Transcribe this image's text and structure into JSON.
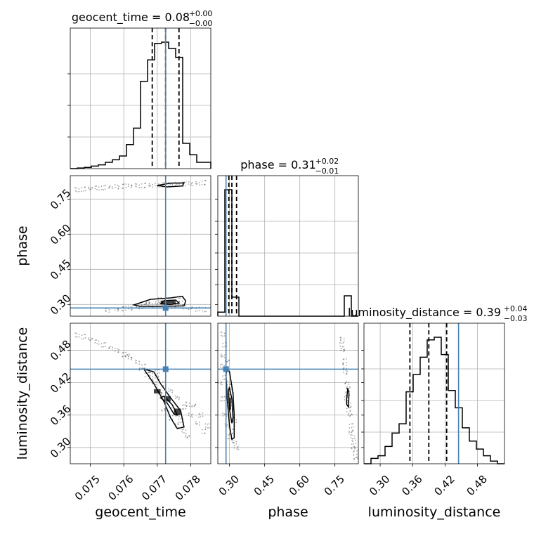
{
  "chart_data": {
    "type": "corner",
    "parameters": [
      {
        "key": "geocent_time",
        "label": "geocent_time",
        "range": [
          0.0744,
          0.0786
        ],
        "ticks": [
          0.075,
          0.076,
          0.077,
          0.078
        ],
        "tick_labels": [
          "0.075",
          "0.076",
          "0.077",
          "0.078"
        ],
        "median": 0.07725,
        "quantiles": [
          0.07685,
          0.07725,
          0.07765
        ],
        "truth": 0.07725,
        "title": {
          "prefix": "geocent_time = 0.08",
          "plus": "+0.00",
          "minus": "−0.00"
        },
        "histogram": {
          "edges": [
            0.0744,
            0.07461,
            0.07482,
            0.07503,
            0.07524,
            0.07545,
            0.07566,
            0.07587,
            0.07608,
            0.07629,
            0.0765,
            0.07671,
            0.07692,
            0.07713,
            0.07734,
            0.07755,
            0.07776,
            0.07797,
            0.07818,
            0.07839,
            0.0786
          ],
          "counts": [
            0.0,
            0.005,
            0.01,
            0.02,
            0.03,
            0.05,
            0.07,
            0.1,
            0.19,
            0.32,
            0.69,
            0.86,
            0.99,
            1.0,
            0.95,
            0.88,
            0.2,
            0.11,
            0.05,
            0.05
          ]
        }
      },
      {
        "key": "phase",
        "label": "phase",
        "range": [
          0.25,
          0.85
        ],
        "ticks": [
          0.3,
          0.45,
          0.6,
          0.75
        ],
        "tick_labels": [
          "0.30",
          "0.45",
          "0.60",
          "0.75"
        ],
        "median": 0.31,
        "quantiles": [
          0.297,
          0.31,
          0.33
        ],
        "truth": 0.285,
        "title": {
          "prefix": "phase = 0.31",
          "plus": "+0.02",
          "minus": "−0.01"
        },
        "histogram": {
          "edges": [
            0.25,
            0.28,
            0.31,
            0.34,
            0.37,
            0.4,
            0.43,
            0.46,
            0.49,
            0.52,
            0.55,
            0.58,
            0.61,
            0.64,
            0.67,
            0.7,
            0.73,
            0.76,
            0.79,
            0.82,
            0.85
          ],
          "counts": [
            0.03,
            0.93,
            0.14,
            0.0,
            0.0,
            0.0,
            0.0,
            0.0,
            0.0,
            0.0,
            0.0,
            0.0,
            0.0,
            0.0,
            0.0,
            0.0,
            0.0,
            0.0,
            0.15,
            0.0
          ]
        }
      },
      {
        "key": "luminosity_distance",
        "label": "luminosity_distance",
        "range": [
          0.27,
          0.53
        ],
        "ticks": [
          0.3,
          0.36,
          0.42,
          0.48
        ],
        "tick_labels": [
          "0.30",
          "0.36",
          "0.42",
          "0.48"
        ],
        "median": 0.39,
        "quantiles": [
          0.355,
          0.39,
          0.423
        ],
        "truth": 0.445,
        "title": {
          "prefix": "luminosity_distance = 0.39",
          "plus": "+0.04",
          "minus": "−0.03"
        },
        "histogram": {
          "edges": [
            0.27,
            0.283,
            0.296,
            0.309,
            0.322,
            0.335,
            0.348,
            0.361,
            0.374,
            0.387,
            0.4,
            0.413,
            0.426,
            0.439,
            0.452,
            0.465,
            0.478,
            0.491,
            0.504,
            0.517,
            0.53
          ],
          "counts": [
            0.0,
            0.04,
            0.06,
            0.13,
            0.23,
            0.3,
            0.54,
            0.67,
            0.8,
            0.93,
            0.95,
            0.82,
            0.55,
            0.42,
            0.27,
            0.17,
            0.11,
            0.06,
            0.02,
            0.0
          ]
        }
      }
    ],
    "pairs": [
      {
        "x": "geocent_time",
        "y": "phase",
        "samples": [
          [
            0.0746,
            0.79
          ],
          [
            0.0748,
            0.792
          ],
          [
            0.075,
            0.795
          ],
          [
            0.0752,
            0.797
          ],
          [
            0.0754,
            0.799
          ],
          [
            0.0756,
            0.801
          ],
          [
            0.0758,
            0.803
          ],
          [
            0.076,
            0.805
          ],
          [
            0.0762,
            0.806
          ],
          [
            0.0764,
            0.807
          ],
          [
            0.0766,
            0.808
          ],
          [
            0.0768,
            0.809
          ],
          [
            0.077,
            0.81
          ],
          [
            0.0772,
            0.811
          ],
          [
            0.0774,
            0.812
          ],
          [
            0.0776,
            0.813
          ],
          [
            0.0778,
            0.814
          ],
          [
            0.078,
            0.816
          ],
          [
            0.0782,
            0.818
          ],
          [
            0.0784,
            0.82
          ],
          [
            0.0755,
            0.275
          ],
          [
            0.0758,
            0.278
          ],
          [
            0.076,
            0.282
          ],
          [
            0.0762,
            0.285
          ],
          [
            0.0764,
            0.288
          ],
          [
            0.0766,
            0.292
          ],
          [
            0.0768,
            0.298
          ],
          [
            0.077,
            0.305
          ],
          [
            0.0772,
            0.31
          ],
          [
            0.0774,
            0.31
          ],
          [
            0.0776,
            0.305
          ],
          [
            0.0777,
            0.32
          ],
          [
            0.0771,
            0.32
          ],
          [
            0.0767,
            0.305
          ],
          [
            0.0775,
            0.295
          ],
          [
            0.0778,
            0.29
          ],
          [
            0.078,
            0.285
          ],
          [
            0.0782,
            0.28
          ],
          [
            0.0784,
            0.278
          ],
          [
            0.0773,
            0.3
          ]
        ],
        "contours": [
          [
            [
              0.0763,
              0.298
            ],
            [
              0.0768,
              0.322
            ],
            [
              0.0774,
              0.328
            ],
            [
              0.07775,
              0.335
            ],
            [
              0.07785,
              0.315
            ],
            [
              0.0778,
              0.294
            ],
            [
              0.077,
              0.292
            ],
            [
              0.0765,
              0.292
            ],
            [
              0.0763,
              0.298
            ]
          ],
          [
            [
              0.0771,
              0.303
            ],
            [
              0.0772,
              0.316
            ],
            [
              0.07755,
              0.319
            ],
            [
              0.07765,
              0.306
            ],
            [
              0.0774,
              0.3
            ],
            [
              0.0771,
              0.303
            ]
          ],
          [
            [
              0.077,
              0.808
            ],
            [
              0.0774,
              0.818
            ],
            [
              0.0778,
              0.819
            ],
            [
              0.07775,
              0.806
            ],
            [
              0.0773,
              0.802
            ],
            [
              0.077,
              0.808
            ]
          ]
        ],
        "dense_blocks": [
          [
            0.0771,
            0.304,
            0.07755,
            0.316
          ]
        ]
      },
      {
        "x": "geocent_time",
        "y": "luminosity_distance",
        "samples": [
          [
            0.0746,
            0.508
          ],
          [
            0.0748,
            0.505
          ],
          [
            0.075,
            0.5
          ],
          [
            0.0752,
            0.495
          ],
          [
            0.0754,
            0.49
          ],
          [
            0.0756,
            0.485
          ],
          [
            0.0758,
            0.48
          ],
          [
            0.076,
            0.472
          ],
          [
            0.0762,
            0.465
          ],
          [
            0.0764,
            0.458
          ],
          [
            0.0766,
            0.45
          ],
          [
            0.0768,
            0.44
          ],
          [
            0.077,
            0.43
          ],
          [
            0.0772,
            0.418
          ],
          [
            0.0774,
            0.405
          ],
          [
            0.0776,
            0.392
          ],
          [
            0.0778,
            0.375
          ],
          [
            0.078,
            0.36
          ],
          [
            0.0782,
            0.345
          ],
          [
            0.0784,
            0.33
          ],
          [
            0.0769,
            0.42
          ],
          [
            0.0771,
            0.4
          ],
          [
            0.0773,
            0.39
          ],
          [
            0.0775,
            0.37
          ],
          [
            0.0776,
            0.36
          ],
          [
            0.0777,
            0.35
          ],
          [
            0.0778,
            0.33
          ],
          [
            0.0779,
            0.32
          ],
          [
            0.077,
            0.44
          ],
          [
            0.0768,
            0.43
          ],
          [
            0.0772,
            0.37
          ],
          [
            0.0774,
            0.355
          ],
          [
            0.0776,
            0.34
          ],
          [
            0.0765,
            0.445
          ],
          [
            0.0767,
            0.435
          ],
          [
            0.0779,
            0.38
          ],
          [
            0.0781,
            0.378
          ],
          [
            0.0783,
            0.36
          ],
          [
            0.0785,
            0.34
          ],
          [
            0.0761,
            0.47
          ]
        ],
        "contours": [
          [
            [
              0.0766,
              0.445
            ],
            [
              0.0769,
              0.418
            ],
            [
              0.0772,
              0.385
            ],
            [
              0.0774,
              0.355
            ],
            [
              0.0776,
              0.335
            ],
            [
              0.0778,
              0.338
            ],
            [
              0.0777,
              0.368
            ],
            [
              0.0774,
              0.392
            ],
            [
              0.0771,
              0.418
            ],
            [
              0.0769,
              0.44
            ],
            [
              0.0766,
              0.445
            ]
          ],
          [
            [
              0.0771,
              0.392
            ],
            [
              0.0773,
              0.382
            ],
            [
              0.0775,
              0.362
            ],
            [
              0.0776,
              0.36
            ],
            [
              0.07745,
              0.379
            ],
            [
              0.0772,
              0.395
            ],
            [
              0.0771,
              0.392
            ]
          ]
        ],
        "dense_blocks": [
          [
            0.0769,
            0.4,
            0.0771,
            0.408
          ],
          [
            0.0772,
            0.385,
            0.0774,
            0.395
          ],
          [
            0.0775,
            0.36,
            0.0777,
            0.372
          ]
        ]
      },
      {
        "x": "phase",
        "y": "luminosity_distance",
        "samples": [
          [
            0.27,
            0.51
          ],
          [
            0.28,
            0.49
          ],
          [
            0.29,
            0.46
          ],
          [
            0.27,
            0.45
          ],
          [
            0.28,
            0.43
          ],
          [
            0.3,
            0.41
          ],
          [
            0.31,
            0.4
          ],
          [
            0.3,
            0.38
          ],
          [
            0.31,
            0.37
          ],
          [
            0.32,
            0.35
          ],
          [
            0.31,
            0.33
          ],
          [
            0.32,
            0.31
          ],
          [
            0.33,
            0.3
          ],
          [
            0.3,
            0.32
          ],
          [
            0.29,
            0.34
          ],
          [
            0.28,
            0.36
          ],
          [
            0.27,
            0.39
          ],
          [
            0.26,
            0.42
          ],
          [
            0.27,
            0.47
          ],
          [
            0.3,
            0.42
          ],
          [
            0.78,
            0.5
          ],
          [
            0.785,
            0.48
          ],
          [
            0.79,
            0.46
          ],
          [
            0.795,
            0.44
          ],
          [
            0.8,
            0.42
          ],
          [
            0.805,
            0.4
          ],
          [
            0.81,
            0.38
          ],
          [
            0.815,
            0.36
          ],
          [
            0.82,
            0.34
          ],
          [
            0.825,
            0.32
          ],
          [
            0.83,
            0.3
          ],
          [
            0.835,
            0.29
          ],
          [
            0.8,
            0.39
          ],
          [
            0.805,
            0.41
          ],
          [
            0.81,
            0.37
          ],
          [
            0.79,
            0.45
          ],
          [
            0.82,
            0.33
          ],
          [
            0.83,
            0.31
          ],
          [
            0.78,
            0.49
          ],
          [
            0.84,
            0.28
          ]
        ],
        "contours": [
          [
            [
              0.285,
              0.435
            ],
            [
              0.29,
              0.39
            ],
            [
              0.3,
              0.34
            ],
            [
              0.31,
              0.315
            ],
            [
              0.32,
              0.318
            ],
            [
              0.32,
              0.36
            ],
            [
              0.315,
              0.4
            ],
            [
              0.3,
              0.44
            ],
            [
              0.29,
              0.445
            ],
            [
              0.285,
              0.435
            ]
          ],
          [
            [
              0.295,
              0.405
            ],
            [
              0.3,
              0.37
            ],
            [
              0.31,
              0.345
            ],
            [
              0.315,
              0.355
            ],
            [
              0.31,
              0.39
            ],
            [
              0.3,
              0.41
            ],
            [
              0.295,
              0.405
            ]
          ],
          [
            [
              0.8,
              0.39
            ],
            [
              0.805,
              0.41
            ],
            [
              0.81,
              0.4
            ],
            [
              0.808,
              0.375
            ],
            [
              0.8,
              0.38
            ],
            [
              0.8,
              0.39
            ]
          ]
        ],
        "dense_blocks": [
          [
            0.297,
            0.37,
            0.307,
            0.392
          ]
        ]
      }
    ]
  }
}
